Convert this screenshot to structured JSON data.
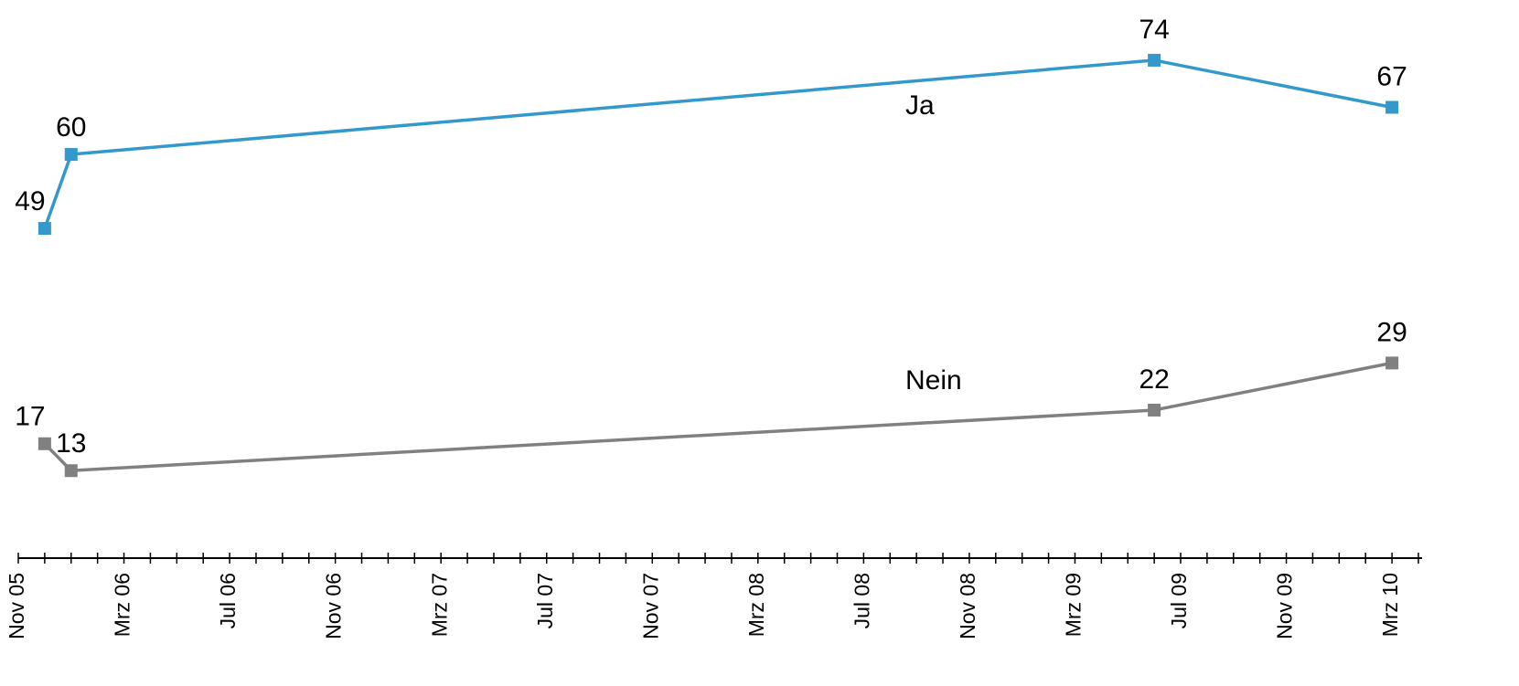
{
  "chart_data": {
    "type": "line",
    "x": [
      "2005-12",
      "2006-01",
      "2009-06",
      "2010-03"
    ],
    "series": [
      {
        "name": "Ja",
        "color": "#3399cc",
        "values": [
          49,
          60,
          74,
          67
        ]
      },
      {
        "name": "Nein",
        "color": "#808080",
        "values": [
          17,
          13,
          22,
          29
        ]
      }
    ],
    "xlim": [
      "2005-11",
      "2010-04"
    ],
    "xticks": [
      {
        "value": "2005-11",
        "label": "Nov 05"
      },
      {
        "value": "2006-03",
        "label": "Mrz 06"
      },
      {
        "value": "2006-07",
        "label": "Jul 06"
      },
      {
        "value": "2006-11",
        "label": "Nov 06"
      },
      {
        "value": "2007-03",
        "label": "Mrz 07"
      },
      {
        "value": "2007-07",
        "label": "Jul 07"
      },
      {
        "value": "2007-11",
        "label": "Nov 07"
      },
      {
        "value": "2008-03",
        "label": "Mrz 08"
      },
      {
        "value": "2008-07",
        "label": "Jul 08"
      },
      {
        "value": "2008-11",
        "label": "Nov 08"
      },
      {
        "value": "2009-03",
        "label": "Mrz 09"
      },
      {
        "value": "2009-07",
        "label": "Jul 09"
      },
      {
        "value": "2009-11",
        "label": "Nov 09"
      },
      {
        "value": "2010-03",
        "label": "Mrz 10"
      }
    ],
    "xminor_ticks": [
      "2005-12",
      "2006-01",
      "2006-02",
      "2006-04",
      "2006-05",
      "2006-06",
      "2006-08",
      "2006-09",
      "2006-10",
      "2006-12",
      "2007-01",
      "2007-02",
      "2007-04",
      "2007-05",
      "2007-06",
      "2007-08",
      "2007-09",
      "2007-10",
      "2007-12",
      "2008-01",
      "2008-02",
      "2008-04",
      "2008-05",
      "2008-06",
      "2008-08",
      "2008-09",
      "2008-10",
      "2008-12",
      "2009-01",
      "2009-02",
      "2009-04",
      "2009-05",
      "2009-06",
      "2009-08",
      "2009-09",
      "2009-10",
      "2009-12",
      "2010-01",
      "2010-02",
      "2010-04"
    ],
    "ylim": [
      0,
      82
    ]
  }
}
